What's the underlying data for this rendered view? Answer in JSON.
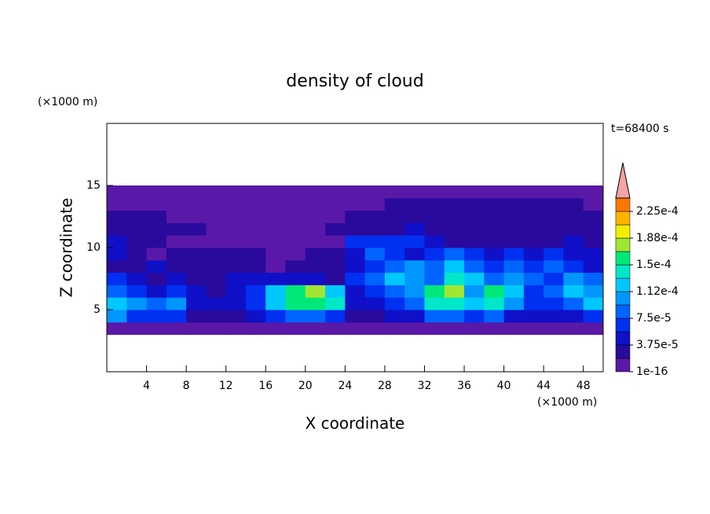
{
  "chart_data": {
    "type": "contour",
    "title": "density of cloud",
    "x_label": "X coordinate",
    "y_label": "Z coordinate",
    "x_unit": "(×1000 m)",
    "y_unit": "(×1000 m)",
    "time_label": "t=68400 s",
    "xlim": [
      0,
      50
    ],
    "ylim": [
      0,
      20
    ],
    "xticks": [
      4,
      8,
      12,
      16,
      20,
      24,
      28,
      32,
      36,
      40,
      44,
      48
    ],
    "yticks": [
      5,
      10,
      15
    ],
    "colorbar": {
      "clim": [
        1e-16,
        0.00024375
      ],
      "ticks": [
        1e-16,
        {
          "value": 3.75e-05,
          "label": "3.75e-5"
        },
        {
          "value": 7.5e-05,
          "label": "7.5e-5"
        },
        {
          "value": 0.0001125,
          "label": "1.12e-4"
        },
        {
          "value": 0.00015,
          "label": "1.5e-4"
        },
        {
          "value": 0.0001875,
          "label": "1.88e-4"
        },
        {
          "value": 0.000225,
          "label": "2.25e-4"
        }
      ],
      "colors": [
        "#5a18a8",
        "#2a0a9c",
        "#1010c8",
        "#0030f0",
        "#0064ff",
        "#0096ff",
        "#00c8ff",
        "#00e8c8",
        "#00e878",
        "#a0e632",
        "#f0f000",
        "#ffb400",
        "#ff7800"
      ],
      "over_color": "#f4a4a4"
    },
    "field": {
      "x": [
        1,
        3,
        5,
        7,
        9,
        11,
        13,
        15,
        17,
        19,
        21,
        23,
        25,
        27,
        29,
        31,
        33,
        35,
        37,
        39,
        41,
        43,
        45,
        47,
        49
      ],
      "z": [
        3.5,
        4.5,
        5.5,
        6.5,
        7.5,
        8.5,
        9.5,
        10.5,
        11.5,
        12.5,
        13.5,
        14.5
      ],
      "values": [
        [
          1e-16,
          1e-16,
          1e-16,
          1e-16,
          1e-16,
          1e-16,
          1e-16,
          1e-16,
          1e-16,
          1e-16,
          1e-16,
          1e-16,
          1e-16,
          1e-16,
          1e-16,
          1e-16,
          1e-16,
          1e-16,
          1e-16,
          1e-16,
          1e-16,
          1e-16,
          1e-16,
          1e-16,
          1e-16
        ],
        [
          0.000103,
          6.6e-05,
          6.6e-05,
          6.6e-05,
          2.8e-05,
          2.8e-05,
          2.8e-05,
          4.7e-05,
          6.6e-05,
          8.4e-05,
          8.4e-05,
          6.6e-05,
          2.8e-05,
          2.8e-05,
          4.7e-05,
          4.7e-05,
          8.4e-05,
          8.4e-05,
          6.6e-05,
          8.4e-05,
          4.7e-05,
          4.7e-05,
          4.7e-05,
          4.7e-05,
          6.6e-05
        ],
        [
          0.000122,
          0.000103,
          8.4e-05,
          0.000103,
          4.7e-05,
          4.7e-05,
          4.7e-05,
          6.6e-05,
          0.000122,
          0.00016,
          0.00016,
          0.000141,
          4.7e-05,
          4.7e-05,
          6.6e-05,
          8.4e-05,
          0.000141,
          0.000141,
          0.000122,
          0.000141,
          0.000103,
          6.6e-05,
          6.6e-05,
          8.4e-05,
          0.000122
        ],
        [
          8.4e-05,
          6.6e-05,
          4.7e-05,
          6.6e-05,
          4.7e-05,
          2.8e-05,
          4.7e-05,
          6.6e-05,
          0.000122,
          0.00016,
          0.000178,
          0.000122,
          4.7e-05,
          6.6e-05,
          8.4e-05,
          0.000103,
          0.00016,
          0.000178,
          0.000103,
          0.00016,
          0.000122,
          6.6e-05,
          8.4e-05,
          0.000122,
          0.000103
        ],
        [
          6.6e-05,
          4.7e-05,
          2.8e-05,
          4.7e-05,
          2.8e-05,
          2.8e-05,
          4.7e-05,
          4.7e-05,
          4.7e-05,
          4.7e-05,
          4.7e-05,
          2.8e-05,
          6.6e-05,
          8.4e-05,
          0.000122,
          0.000103,
          8.4e-05,
          0.000141,
          0.000122,
          8.4e-05,
          0.000103,
          8.4e-05,
          6.6e-05,
          0.000103,
          8.4e-05
        ],
        [
          2.8e-05,
          2.8e-05,
          4.7e-05,
          2.8e-05,
          2.8e-05,
          2.8e-05,
          2.8e-05,
          2.8e-05,
          1e-16,
          2.8e-05,
          2.8e-05,
          2.8e-05,
          4.7e-05,
          6.6e-05,
          8.4e-05,
          0.000103,
          8.4e-05,
          0.000122,
          8.4e-05,
          6.6e-05,
          8.4e-05,
          6.6e-05,
          8.4e-05,
          6.6e-05,
          4.7e-05
        ],
        [
          4.7e-05,
          2.8e-05,
          1e-16,
          2.8e-05,
          2.8e-05,
          2.8e-05,
          2.8e-05,
          2.8e-05,
          1e-16,
          1e-16,
          2.8e-05,
          2.8e-05,
          4.7e-05,
          8.4e-05,
          6.6e-05,
          4.7e-05,
          6.6e-05,
          8.4e-05,
          6.6e-05,
          4.7e-05,
          6.6e-05,
          4.7e-05,
          6.6e-05,
          4.7e-05,
          4.7e-05
        ],
        [
          4.7e-05,
          2.8e-05,
          2.8e-05,
          1e-16,
          1e-16,
          1e-16,
          1e-16,
          1e-16,
          1e-16,
          1e-16,
          1e-16,
          1e-16,
          6.6e-05,
          6.6e-05,
          6.6e-05,
          6.6e-05,
          4.7e-05,
          2.8e-05,
          2.8e-05,
          2.8e-05,
          2.8e-05,
          2.8e-05,
          2.8e-05,
          4.7e-05,
          2.8e-05
        ],
        [
          2.8e-05,
          2.8e-05,
          2.8e-05,
          2.8e-05,
          2.8e-05,
          1e-16,
          1e-16,
          1e-16,
          1e-16,
          1e-16,
          1e-16,
          2.8e-05,
          2.8e-05,
          2.8e-05,
          2.8e-05,
          4.7e-05,
          2.8e-05,
          2.8e-05,
          2.8e-05,
          2.8e-05,
          2.8e-05,
          2.8e-05,
          2.8e-05,
          2.8e-05,
          2.8e-05
        ],
        [
          2.8e-05,
          2.8e-05,
          2.8e-05,
          1e-16,
          1e-16,
          1e-16,
          1e-16,
          1e-16,
          1e-16,
          1e-16,
          1e-16,
          1e-16,
          2.8e-05,
          2.8e-05,
          2.8e-05,
          2.8e-05,
          2.8e-05,
          2.8e-05,
          2.8e-05,
          2.8e-05,
          2.8e-05,
          2.8e-05,
          2.8e-05,
          2.8e-05,
          2.8e-05
        ],
        [
          1e-16,
          1e-16,
          1e-16,
          1e-16,
          1e-16,
          1e-16,
          1e-16,
          1e-16,
          1e-16,
          1e-16,
          1e-16,
          1e-16,
          1e-16,
          1e-16,
          2.8e-05,
          2.8e-05,
          2.8e-05,
          2.8e-05,
          2.8e-05,
          2.8e-05,
          2.8e-05,
          2.8e-05,
          2.8e-05,
          2.8e-05,
          1e-16
        ],
        [
          1e-16,
          1e-16,
          1e-16,
          1e-16,
          1e-16,
          1e-16,
          1e-16,
          1e-16,
          1e-16,
          1e-16,
          1e-16,
          1e-16,
          1e-16,
          1e-16,
          1e-16,
          1e-16,
          1e-16,
          1e-16,
          1e-16,
          1e-16,
          1e-16,
          1e-16,
          1e-16,
          1e-16,
          1e-16
        ]
      ]
    }
  }
}
